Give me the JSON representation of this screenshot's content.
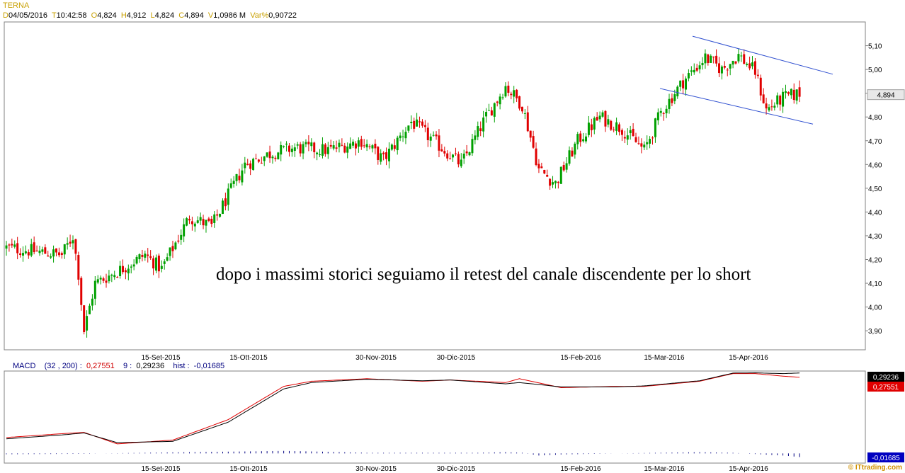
{
  "header": {
    "title": "TERNA",
    "date_label": "D",
    "date": "04/05/2016",
    "time_label": "T",
    "time": "10:42:58",
    "open_label": "O",
    "open": "4,824",
    "high_label": "H",
    "high": "4,912",
    "low_label": "L",
    "low": "4,824",
    "close_label": "C",
    "close": "4,894",
    "volume_label": "V",
    "volume": "1,0986 M",
    "var_label": "Var%",
    "var": "0,90722"
  },
  "annotation": "dopo i massimi storici seguiamo il retest del canale discendente per lo short",
  "last_price_badge": "4,894",
  "macd": {
    "label": "MACD",
    "params": "(32 , 200) :",
    "macd_value": "0,27551",
    "signal_label": "9 :",
    "signal_value": "0,29236",
    "hist_label": "hist :",
    "hist_value": "-0,01685",
    "badge_signal": "0,29236",
    "badge_macd": "0,27551",
    "badge_hist": "-0,01685"
  },
  "copyright": "© ITtrading.com",
  "colors": {
    "up": "#00a000",
    "down": "#e00000",
    "channel": "#3050d0",
    "macd_line": "#e00000",
    "signal_line": "#000000",
    "hist": "#000080"
  },
  "chart_data": [
    {
      "type": "candlestick",
      "title": "TERNA",
      "yticks": [
        "5,10",
        "5,00",
        "4,90",
        "4,80",
        "4,70",
        "4,60",
        "4,50",
        "4,40",
        "4,30",
        "4,20",
        "4,10",
        "4,00",
        "3,90"
      ],
      "xticks": [
        "15-Set-2015",
        "15-Ott-2015",
        "30-Nov-2015",
        "30-Dic-2015",
        "15-Feb-2016",
        "15-Mar-2016",
        "15-Apr-2016"
      ],
      "ylim": [
        3.82,
        5.2
      ],
      "trend": [
        [
          0,
          4.25
        ],
        [
          20,
          4.22
        ],
        [
          24,
          4.3
        ],
        [
          26,
          4.14
        ],
        [
          28,
          3.9
        ],
        [
          32,
          4.1
        ],
        [
          40,
          4.15
        ],
        [
          50,
          4.22
        ],
        [
          56,
          4.16
        ],
        [
          66,
          4.38
        ],
        [
          74,
          4.34
        ],
        [
          86,
          4.6
        ],
        [
          96,
          4.65
        ],
        [
          104,
          4.67
        ],
        [
          116,
          4.66
        ],
        [
          128,
          4.7
        ],
        [
          136,
          4.62
        ],
        [
          146,
          4.78
        ],
        [
          158,
          4.66
        ],
        [
          164,
          4.6
        ],
        [
          172,
          4.78
        ],
        [
          180,
          4.93
        ],
        [
          186,
          4.85
        ],
        [
          192,
          4.58
        ],
        [
          198,
          4.52
        ],
        [
          206,
          4.7
        ],
        [
          214,
          4.8
        ],
        [
          222,
          4.75
        ],
        [
          230,
          4.66
        ],
        [
          236,
          4.82
        ],
        [
          244,
          4.95
        ],
        [
          252,
          5.05
        ],
        [
          258,
          5.0
        ],
        [
          264,
          5.06
        ],
        [
          270,
          4.99
        ],
        [
          274,
          4.83
        ],
        [
          280,
          4.88
        ],
        [
          286,
          4.9
        ]
      ],
      "channel_upper": [
        [
          "2016-03-16",
          5.14
        ],
        [
          "2016-05-20",
          4.98
        ]
      ],
      "channel_lower": [
        [
          "2016-03-11",
          4.92
        ],
        [
          "2016-05-12",
          4.77
        ]
      ],
      "last": 4.894
    },
    {
      "type": "line",
      "title": "MACD",
      "ylim": [
        -0.06,
        0.3
      ],
      "series": [
        {
          "name": "MACD",
          "color": "#e00000",
          "x": [
            0,
            20,
            28,
            40,
            60,
            80,
            100,
            110,
            130,
            150,
            160,
            180,
            185,
            200,
            220,
            230,
            250,
            262,
            270,
            280,
            286
          ],
          "values": [
            0.04,
            0.055,
            0.06,
            0.015,
            0.03,
            0.11,
            0.24,
            0.26,
            0.27,
            0.26,
            0.265,
            0.255,
            0.27,
            0.235,
            0.24,
            0.24,
            0.26,
            0.29,
            0.29,
            0.28,
            0.2755
          ]
        },
        {
          "name": "9",
          "color": "#000000",
          "x": [
            0,
            20,
            28,
            40,
            60,
            80,
            100,
            110,
            130,
            150,
            160,
            180,
            185,
            200,
            220,
            230,
            250,
            262,
            270,
            280,
            286
          ],
          "values": [
            0.035,
            0.05,
            0.058,
            0.02,
            0.025,
            0.1,
            0.23,
            0.255,
            0.268,
            0.262,
            0.265,
            0.25,
            0.255,
            0.238,
            0.238,
            0.242,
            0.262,
            0.292,
            0.293,
            0.29,
            0.2924
          ]
        },
        {
          "name": "hist",
          "type": "bar",
          "color": "#000080",
          "x": [
            0,
            28,
            34,
            60,
            90,
            100,
            115,
            130,
            170,
            180,
            186,
            192,
            200,
            220,
            250,
            262,
            270,
            280,
            286
          ],
          "values": [
            -0.004,
            -0.002,
            0.0,
            0.005,
            0.01,
            0.012,
            0.008,
            0.003,
            0.003,
            0.006,
            0.003,
            -0.01,
            -0.005,
            0.0,
            0.006,
            0.003,
            -0.003,
            -0.01,
            -0.017
          ]
        }
      ]
    }
  ]
}
